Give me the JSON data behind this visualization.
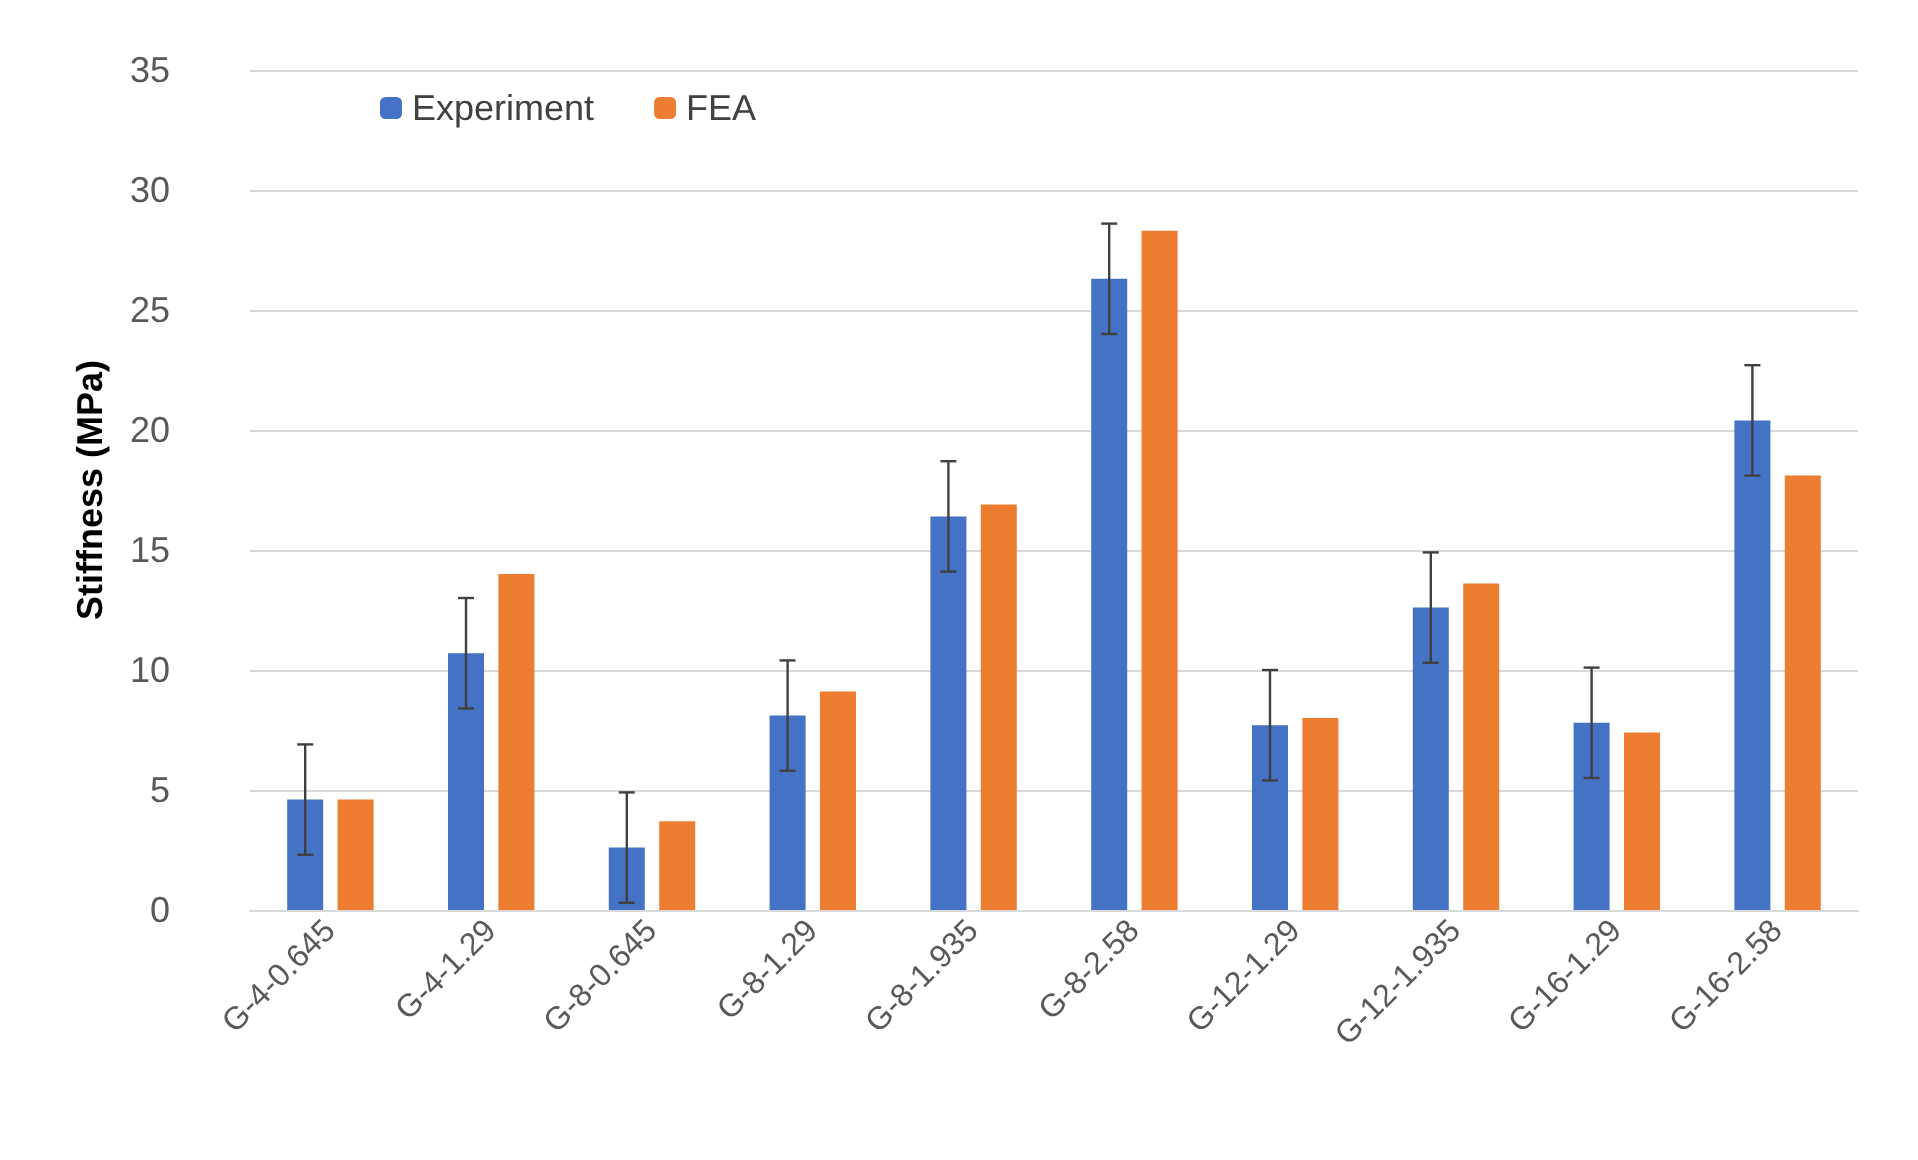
{
  "chart_data": {
    "type": "bar",
    "ylabel": "Stiffness (MPa)",
    "categories": [
      "G-4-0.645",
      "G-4-1.29",
      "G-8-0.645",
      "G-8-1.29",
      "G-8-1.935",
      "G-8-2.58",
      "G-12-1.29",
      "G-12-1.935",
      "G-16-1.29",
      "G-16-2.58"
    ],
    "series": [
      {
        "name": "Experiment",
        "color": "#4472c4",
        "values": [
          4.6,
          10.7,
          2.6,
          8.1,
          16.4,
          26.3,
          7.7,
          12.6,
          7.8,
          20.4
        ],
        "errors": [
          2.3,
          2.3,
          2.3,
          2.3,
          2.3,
          2.3,
          2.3,
          2.3,
          2.3,
          2.3
        ]
      },
      {
        "name": "FEA",
        "color": "#ed7d31",
        "values": [
          4.6,
          14.0,
          3.7,
          9.1,
          16.9,
          28.3,
          8.0,
          13.6,
          7.4,
          18.1
        ]
      }
    ],
    "ylim": [
      0,
      35
    ],
    "yticks": [
      0,
      5,
      10,
      15,
      20,
      25,
      30,
      35
    ],
    "grid": "y",
    "legend": "top left"
  }
}
